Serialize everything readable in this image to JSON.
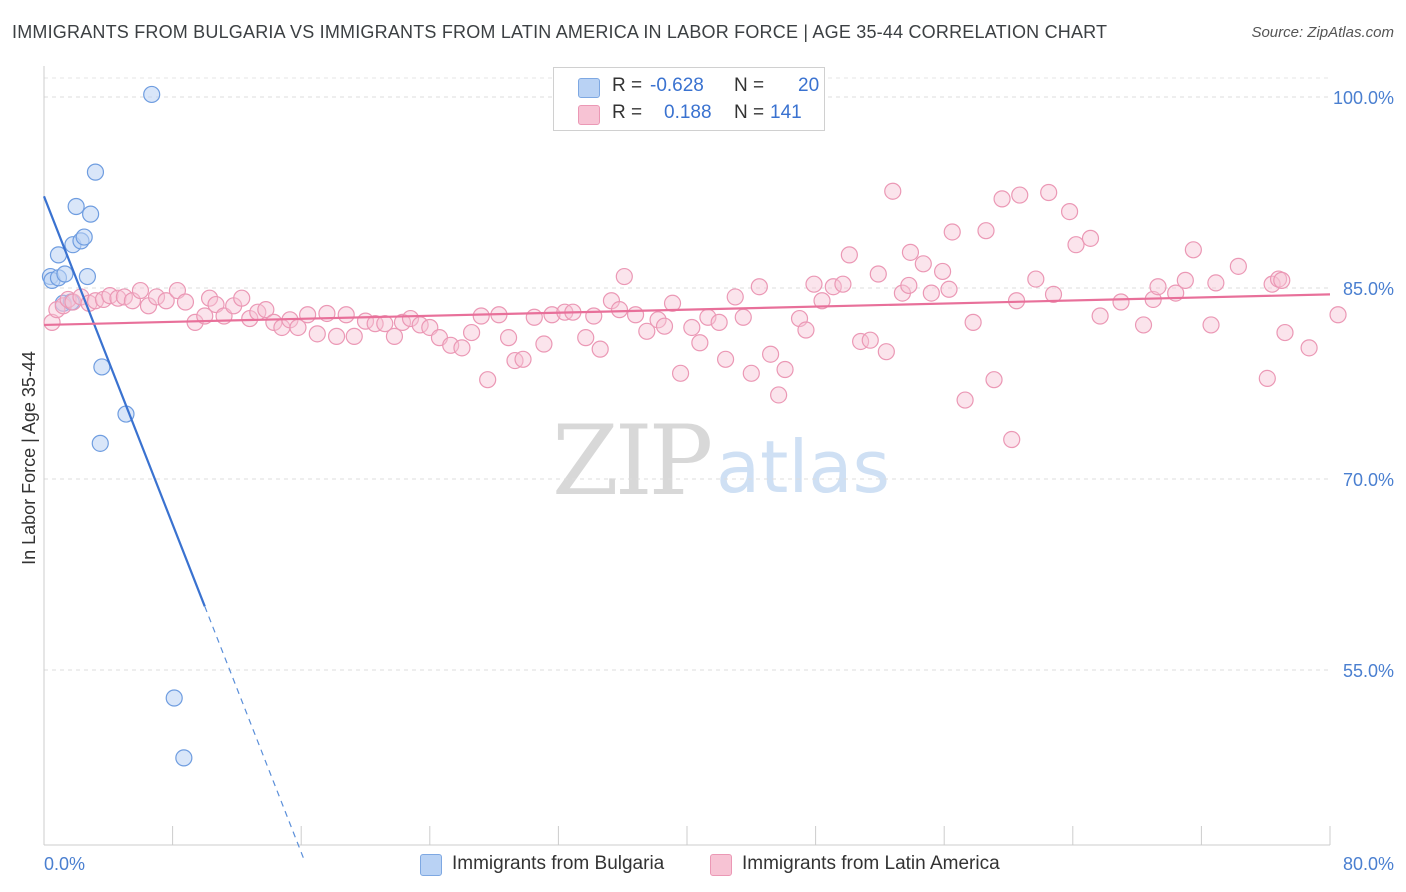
{
  "title": "IMMIGRANTS FROM BULGARIA VS IMMIGRANTS FROM LATIN AMERICA IN LABOR FORCE | AGE 35-44 CORRELATION CHART",
  "source": "Source: ZipAtlas.com",
  "watermark": {
    "zip": "ZIP",
    "atlas": "atlas"
  },
  "legend": {
    "r_label": "R =",
    "n_label": "N =",
    "series1": {
      "r": "-0.628",
      "n": "20"
    },
    "series2": {
      "r": "0.188",
      "n": "141"
    }
  },
  "colors": {
    "blue": "#5b8fd9",
    "blue_fill": "#b9d2f4",
    "pink": "#e8709a",
    "pink_fill": "#f7c3d4",
    "axis_text": "#4a7fd0"
  },
  "chart_data": {
    "type": "scatter",
    "title": "IMMIGRANTS FROM BULGARIA VS IMMIGRANTS FROM LATIN AMERICA IN LABOR FORCE | AGE 35-44 CORRELATION CHART",
    "xlabel": "",
    "ylabel": "In Labor Force | Age 35-44",
    "xlim": [
      0,
      80
    ],
    "ylim": [
      41,
      102
    ],
    "x_tick_labels": [
      "0.0%",
      "80.0%"
    ],
    "y_tick_labels": [
      "100.0%",
      "85.0%",
      "70.0%",
      "55.0%"
    ],
    "y_ticks": [
      100,
      85,
      70,
      55
    ],
    "grid": true,
    "legend_placement": "top-center",
    "series": [
      {
        "name": "Immigrants from Bulgaria",
        "color": "#5b8fd9",
        "r": -0.628,
        "n": 20,
        "trend": {
          "x0": 0,
          "y0": 92.2,
          "x1": 10,
          "y1": 60.0,
          "dash_to_x": 16.2
        },
        "points": [
          [
            0.4,
            85.9
          ],
          [
            0.5,
            85.6
          ],
          [
            0.9,
            85.8
          ],
          [
            0.9,
            87.6
          ],
          [
            1.2,
            83.8
          ],
          [
            1.3,
            86.1
          ],
          [
            1.7,
            83.9
          ],
          [
            1.8,
            88.4
          ],
          [
            2.0,
            91.4
          ],
          [
            2.3,
            88.7
          ],
          [
            2.5,
            89.0
          ],
          [
            2.7,
            85.9
          ],
          [
            2.9,
            90.8
          ],
          [
            3.2,
            94.1
          ],
          [
            3.6,
            78.8
          ],
          [
            5.1,
            75.1
          ],
          [
            6.7,
            100.2
          ],
          [
            8.1,
            52.8
          ],
          [
            8.7,
            48.1
          ],
          [
            3.5,
            72.8
          ]
        ]
      },
      {
        "name": "Immigrants from Latin America",
        "color": "#e8709a",
        "r": 0.188,
        "n": 141,
        "trend": {
          "x0": 0,
          "y0": 82.1,
          "x1": 80,
          "y1": 84.5
        },
        "points": [
          [
            0.5,
            82.3
          ],
          [
            0.8,
            83.3
          ],
          [
            1.2,
            83.6
          ],
          [
            1.5,
            84.1
          ],
          [
            1.8,
            83.9
          ],
          [
            2.3,
            84.3
          ],
          [
            2.8,
            83.8
          ],
          [
            3.2,
            84.0
          ],
          [
            3.7,
            84.1
          ],
          [
            4.1,
            84.4
          ],
          [
            4.6,
            84.2
          ],
          [
            5.0,
            84.3
          ],
          [
            5.5,
            84.0
          ],
          [
            6.0,
            84.8
          ],
          [
            6.5,
            83.6
          ],
          [
            7.0,
            84.3
          ],
          [
            7.6,
            84.0
          ],
          [
            8.3,
            84.8
          ],
          [
            8.8,
            83.9
          ],
          [
            9.4,
            82.3
          ],
          [
            10.0,
            82.8
          ],
          [
            10.3,
            84.2
          ],
          [
            10.7,
            83.7
          ],
          [
            11.2,
            82.8
          ],
          [
            11.8,
            83.6
          ],
          [
            12.3,
            84.2
          ],
          [
            12.8,
            82.6
          ],
          [
            13.3,
            83.1
          ],
          [
            13.8,
            83.3
          ],
          [
            14.3,
            82.3
          ],
          [
            14.8,
            81.9
          ],
          [
            15.3,
            82.5
          ],
          [
            15.8,
            81.9
          ],
          [
            16.4,
            82.9
          ],
          [
            17.0,
            81.4
          ],
          [
            17.6,
            83.0
          ],
          [
            18.2,
            81.2
          ],
          [
            18.8,
            82.9
          ],
          [
            19.3,
            81.2
          ],
          [
            20.0,
            82.4
          ],
          [
            20.6,
            82.2
          ],
          [
            21.2,
            82.2
          ],
          [
            21.8,
            81.2
          ],
          [
            22.3,
            82.3
          ],
          [
            22.8,
            82.6
          ],
          [
            23.4,
            82.1
          ],
          [
            24.0,
            81.9
          ],
          [
            24.6,
            81.1
          ],
          [
            25.3,
            80.5
          ],
          [
            26.0,
            80.3
          ],
          [
            26.6,
            81.5
          ],
          [
            27.2,
            82.8
          ],
          [
            27.6,
            77.8
          ],
          [
            28.3,
            82.9
          ],
          [
            28.9,
            81.1
          ],
          [
            29.3,
            79.3
          ],
          [
            29.8,
            79.4
          ],
          [
            30.5,
            82.7
          ],
          [
            31.1,
            80.6
          ],
          [
            31.6,
            82.9
          ],
          [
            32.4,
            83.1
          ],
          [
            32.9,
            83.1
          ],
          [
            33.7,
            81.1
          ],
          [
            34.2,
            82.8
          ],
          [
            34.6,
            80.2
          ],
          [
            35.3,
            84.0
          ],
          [
            36.1,
            85.9
          ],
          [
            35.8,
            83.3
          ],
          [
            36.8,
            82.9
          ],
          [
            37.5,
            81.6
          ],
          [
            38.2,
            82.5
          ],
          [
            38.6,
            82.0
          ],
          [
            39.1,
            83.8
          ],
          [
            39.6,
            78.3
          ],
          [
            40.3,
            81.9
          ],
          [
            40.8,
            80.7
          ],
          [
            41.3,
            82.7
          ],
          [
            42.0,
            82.3
          ],
          [
            42.4,
            79.4
          ],
          [
            43.0,
            84.3
          ],
          [
            43.5,
            82.7
          ],
          [
            44.0,
            78.3
          ],
          [
            44.5,
            85.1
          ],
          [
            45.2,
            79.8
          ],
          [
            45.7,
            76.6
          ],
          [
            46.1,
            78.6
          ],
          [
            47.0,
            82.6
          ],
          [
            47.4,
            81.7
          ],
          [
            47.9,
            85.3
          ],
          [
            48.4,
            84.0
          ],
          [
            49.1,
            85.1
          ],
          [
            49.7,
            85.3
          ],
          [
            50.1,
            87.6
          ],
          [
            50.8,
            80.8
          ],
          [
            51.4,
            80.9
          ],
          [
            51.9,
            86.1
          ],
          [
            52.4,
            80.0
          ],
          [
            52.8,
            92.6
          ],
          [
            53.4,
            84.6
          ],
          [
            53.9,
            87.8
          ],
          [
            54.7,
            86.9
          ],
          [
            55.2,
            84.6
          ],
          [
            55.9,
            86.3
          ],
          [
            56.5,
            89.4
          ],
          [
            57.3,
            76.2
          ],
          [
            57.8,
            82.3
          ],
          [
            58.6,
            89.5
          ],
          [
            59.1,
            77.8
          ],
          [
            59.6,
            92.0
          ],
          [
            60.2,
            73.1
          ],
          [
            60.7,
            92.3
          ],
          [
            61.7,
            85.7
          ],
          [
            62.8,
            84.5
          ],
          [
            62.5,
            92.5
          ],
          [
            63.8,
            91.0
          ],
          [
            64.2,
            88.4
          ],
          [
            65.1,
            88.9
          ],
          [
            65.7,
            82.8
          ],
          [
            67.0,
            83.9
          ],
          [
            68.4,
            82.1
          ],
          [
            69.0,
            84.1
          ],
          [
            69.3,
            85.1
          ],
          [
            70.4,
            84.6
          ],
          [
            71.0,
            85.6
          ],
          [
            71.5,
            88.0
          ],
          [
            72.6,
            82.1
          ],
          [
            72.9,
            85.4
          ],
          [
            74.3,
            86.7
          ],
          [
            76.1,
            77.9
          ],
          [
            76.4,
            85.3
          ],
          [
            76.8,
            85.7
          ],
          [
            77.0,
            85.6
          ],
          [
            77.2,
            81.5
          ],
          [
            78.7,
            80.3
          ],
          [
            80.5,
            82.9
          ],
          [
            53.8,
            85.2
          ],
          [
            56.3,
            84.9
          ],
          [
            60.5,
            84.0
          ]
        ]
      }
    ]
  }
}
